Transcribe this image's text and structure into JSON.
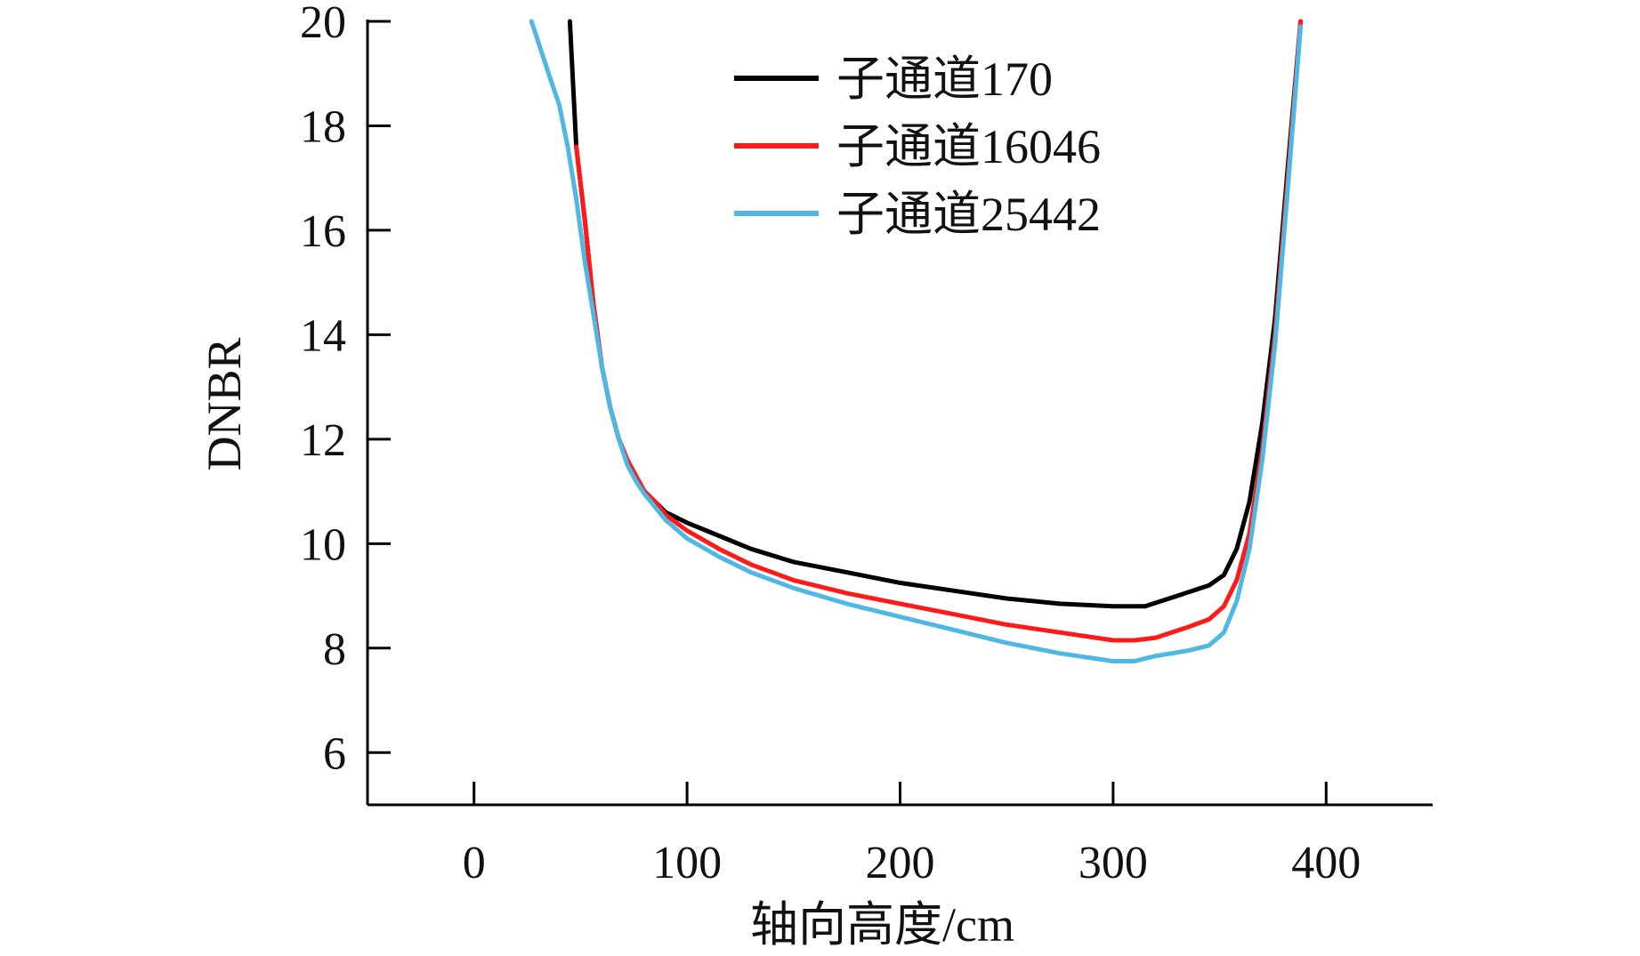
{
  "chart_data": {
    "type": "line",
    "title": "",
    "xlabel": "轴向高度/cm",
    "ylabel": "DNBR",
    "xlim": [
      -50,
      450
    ],
    "ylim": [
      5,
      20
    ],
    "xticks": [
      0,
      100,
      200,
      300,
      400
    ],
    "yticks": [
      6,
      8,
      10,
      12,
      14,
      16,
      18,
      20
    ],
    "grid": false,
    "legend_position": "top-right",
    "series": [
      {
        "name": "子通道170",
        "color": "#000000",
        "x": [
          45,
          48,
          52,
          56,
          60,
          64,
          68,
          72,
          76,
          80,
          85,
          90,
          100,
          115,
          130,
          150,
          175,
          200,
          225,
          250,
          275,
          300,
          315,
          330,
          345,
          352,
          358,
          364,
          370,
          376,
          382,
          388
        ],
        "y": [
          20.0,
          17.6,
          16.2,
          14.6,
          13.4,
          12.6,
          12.0,
          11.6,
          11.3,
          11.0,
          10.8,
          10.6,
          10.4,
          10.15,
          9.9,
          9.65,
          9.45,
          9.25,
          9.1,
          8.95,
          8.85,
          8.8,
          8.8,
          9.0,
          9.2,
          9.4,
          9.9,
          10.8,
          12.3,
          14.3,
          17.2,
          20.0
        ]
      },
      {
        "name": "子通道16046",
        "color": "#ff1a1a",
        "x": [
          48,
          52,
          56,
          60,
          64,
          68,
          72,
          76,
          80,
          85,
          90,
          100,
          115,
          130,
          150,
          175,
          200,
          225,
          250,
          275,
          300,
          310,
          320,
          335,
          345,
          352,
          358,
          364,
          370,
          376,
          382,
          388
        ],
        "y": [
          17.6,
          16.2,
          14.6,
          13.4,
          12.6,
          12.0,
          11.6,
          11.3,
          11.0,
          10.8,
          10.55,
          10.25,
          9.9,
          9.6,
          9.3,
          9.05,
          8.85,
          8.65,
          8.45,
          8.3,
          8.15,
          8.15,
          8.2,
          8.4,
          8.55,
          8.8,
          9.3,
          10.2,
          11.8,
          14.0,
          17.0,
          20.0
        ]
      },
      {
        "name": "子通道25442",
        "color": "#4fb7e3",
        "x": [
          27,
          35,
          40,
          44,
          48,
          52,
          56,
          60,
          64,
          68,
          72,
          76,
          80,
          85,
          90,
          100,
          115,
          130,
          150,
          175,
          200,
          225,
          250,
          275,
          300,
          310,
          320,
          335,
          345,
          352,
          358,
          364,
          370,
          376,
          382,
          388
        ],
        "y": [
          20.0,
          19.0,
          18.4,
          17.6,
          16.6,
          15.4,
          14.4,
          13.4,
          12.6,
          12.0,
          11.5,
          11.2,
          10.95,
          10.7,
          10.45,
          10.1,
          9.75,
          9.45,
          9.15,
          8.85,
          8.6,
          8.35,
          8.1,
          7.9,
          7.75,
          7.75,
          7.85,
          7.95,
          8.05,
          8.3,
          8.9,
          9.9,
          11.6,
          13.8,
          16.8,
          19.9
        ]
      }
    ]
  }
}
